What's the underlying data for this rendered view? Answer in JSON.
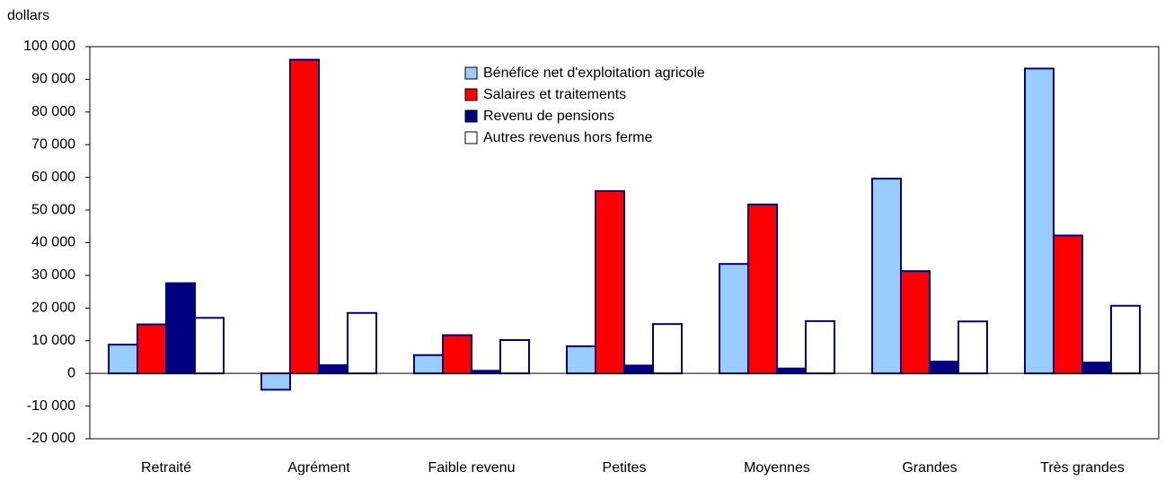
{
  "chart_data": {
    "type": "bar",
    "y_axis_label": "dollars",
    "categories": [
      "Retraité",
      "Agrément",
      "Faible revenu",
      "Petites",
      "Moyennes",
      "Grandes",
      "Très grandes"
    ],
    "series": [
      {
        "name": "Bénéfice net d'exploitation agricole",
        "color": "#99ccff",
        "values": [
          8800,
          -5000,
          5600,
          8300,
          33500,
          59600,
          93300
        ]
      },
      {
        "name": "Salaires et traitements",
        "color": "#ff0000",
        "values": [
          15000,
          96000,
          11700,
          55800,
          51700,
          31300,
          42200
        ]
      },
      {
        "name": "Revenu de pensions",
        "color": "#000080",
        "values": [
          27600,
          2500,
          800,
          2400,
          1500,
          3600,
          3300
        ]
      },
      {
        "name": "Autres revenus hors ferme",
        "color": "#ffffff",
        "values": [
          17000,
          18500,
          10200,
          15100,
          16000,
          15900,
          20700
        ]
      }
    ],
    "ylim": [
      -20000,
      100000
    ],
    "yticks": [
      {
        "value": -20000,
        "label": "-20 000"
      },
      {
        "value": -10000,
        "label": "-10 000"
      },
      0,
      {
        "value": 10000,
        "label": "10 000"
      },
      {
        "value": 20000,
        "label": "20 000"
      },
      {
        "value": 30000,
        "label": "30 000"
      },
      {
        "value": 40000,
        "label": "40 000"
      },
      {
        "value": 50000,
        "label": "50 000"
      },
      {
        "value": 60000,
        "label": "60 000"
      },
      {
        "value": 70000,
        "label": "70 000"
      },
      {
        "value": 80000,
        "label": "80 000"
      },
      {
        "value": 90000,
        "label": "90 000"
      },
      {
        "value": 100000,
        "label": "100 000"
      }
    ],
    "grid": false
  }
}
